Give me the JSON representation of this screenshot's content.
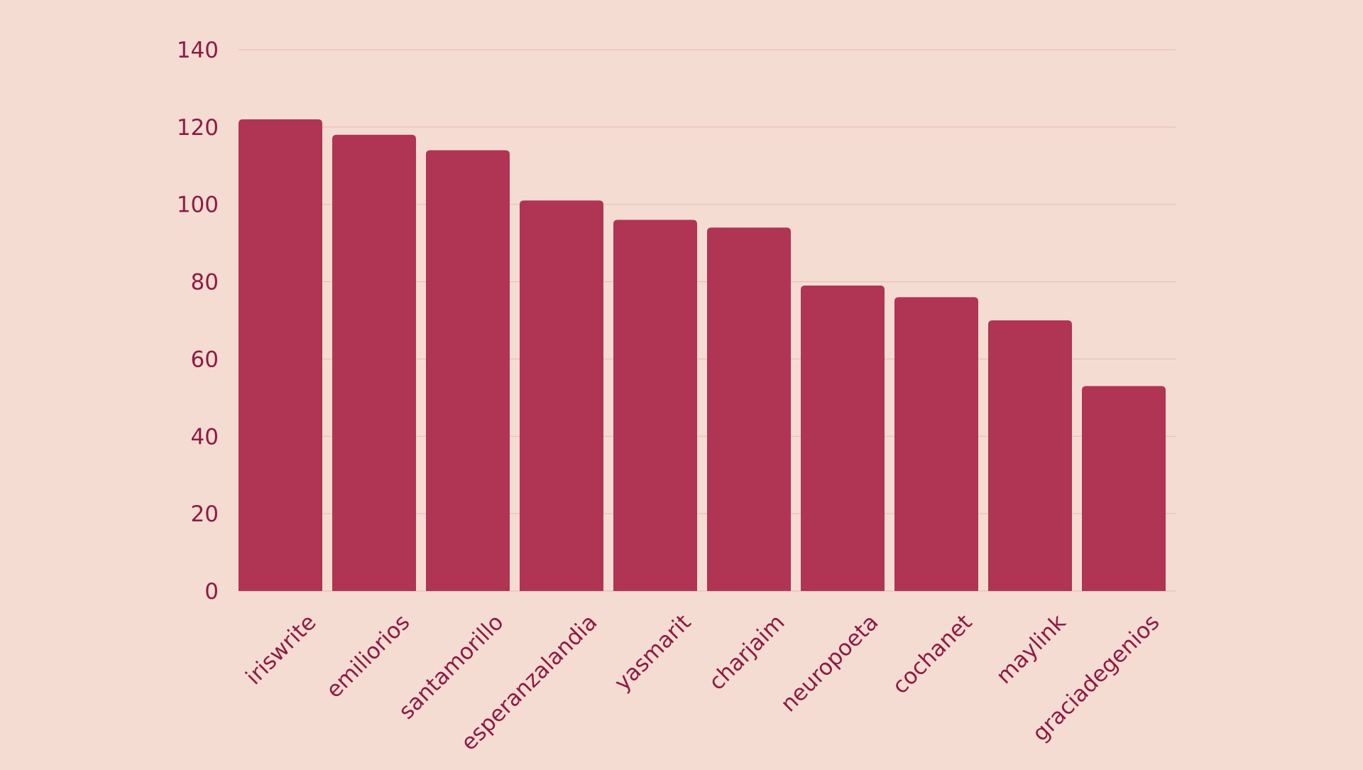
{
  "colors": {
    "background": "#f5dcd3",
    "bar": "#b03454",
    "text": "#8e1b45",
    "grid": "#e3b9b4"
  },
  "chart_data": {
    "type": "bar",
    "title": "",
    "xlabel": "",
    "ylabel": "",
    "categories": [
      "iriswrite",
      "emiliorios",
      "santamorillo",
      "esperanzalandia",
      "yasmarit",
      "charjaim",
      "neuropoeta",
      "cochanet",
      "maylink",
      "graciadegenios"
    ],
    "values": [
      122,
      118,
      114,
      101,
      96,
      94,
      79,
      76,
      70,
      53
    ],
    "ylim": [
      0,
      140
    ],
    "yticks": [
      0,
      20,
      40,
      60,
      80,
      100,
      120,
      140
    ],
    "grid": true,
    "legend": "none"
  }
}
